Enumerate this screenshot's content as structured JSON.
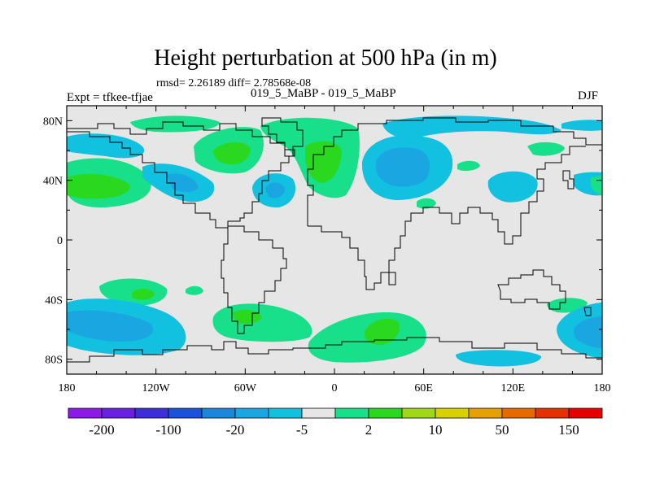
{
  "header": {
    "title": "Height perturbation at 500 hPa (in m)",
    "stats": "rmsd= 2.26189 diff= 2.78568e-08",
    "expt": "Expt = tfkee-tfjae",
    "comparison": "019_5_MaBP - 019_5_MaBP",
    "season": "DJF"
  },
  "axes": {
    "lat_labels": [
      "80N",
      "40N",
      "0",
      "40S",
      "80S"
    ],
    "lat_values": [
      80,
      40,
      0,
      -40,
      -80
    ],
    "lon_labels": [
      "180",
      "120W",
      "60W",
      "0",
      "60E",
      "120E",
      "180"
    ],
    "lon_values": [
      -180,
      -120,
      -60,
      0,
      60,
      120,
      180
    ],
    "lat_range": [
      -90,
      90
    ],
    "lon_range": [
      -180,
      180
    ]
  },
  "colorbar": {
    "colors": [
      "#8c1ae6",
      "#6a20e0",
      "#3c2ed8",
      "#1a52dc",
      "#1a86dc",
      "#1aa6e0",
      "#12c0e0",
      "#e6e6e6",
      "#18e08a",
      "#2ad820",
      "#a0d818",
      "#d8d000",
      "#e6a000",
      "#e66a00",
      "#e63000",
      "#e60000"
    ],
    "labels": [
      "-200",
      "-100",
      "-20",
      "-5",
      "2",
      "10",
      "50",
      "150"
    ]
  },
  "palette": {
    "background": "#e6e6e6",
    "green": "#18e08a",
    "bright_green": "#2ad820",
    "cyan": "#12c0e0",
    "sky": "#1aa6e0",
    "blue": "#1a86dc"
  }
}
